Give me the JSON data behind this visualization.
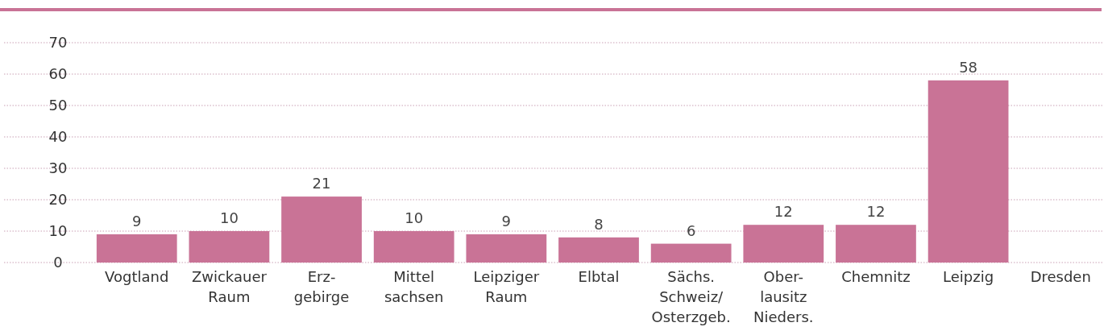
{
  "chart_data": {
    "type": "bar",
    "categories": [
      "Vogtland",
      "Zwickauer\nRaum",
      "Erz-\ngebirge",
      "Mittel\nsachsen",
      "Leipziger\nRaum",
      "Elbtal",
      "Sächs.\nSchweiz/\nOsterzgeb.",
      "Ober-\nlausitz\nNieders.",
      "Chemnitz",
      "Leipzig",
      "Dresden"
    ],
    "values": [
      9,
      10,
      21,
      10,
      9,
      8,
      6,
      12,
      12,
      58,
      null
    ],
    "color": "#c97396",
    "ylim": [
      0,
      70
    ],
    "yticks": [
      0,
      10,
      20,
      30,
      40,
      50,
      60,
      70
    ],
    "grid": "y",
    "data_labels": true
  }
}
